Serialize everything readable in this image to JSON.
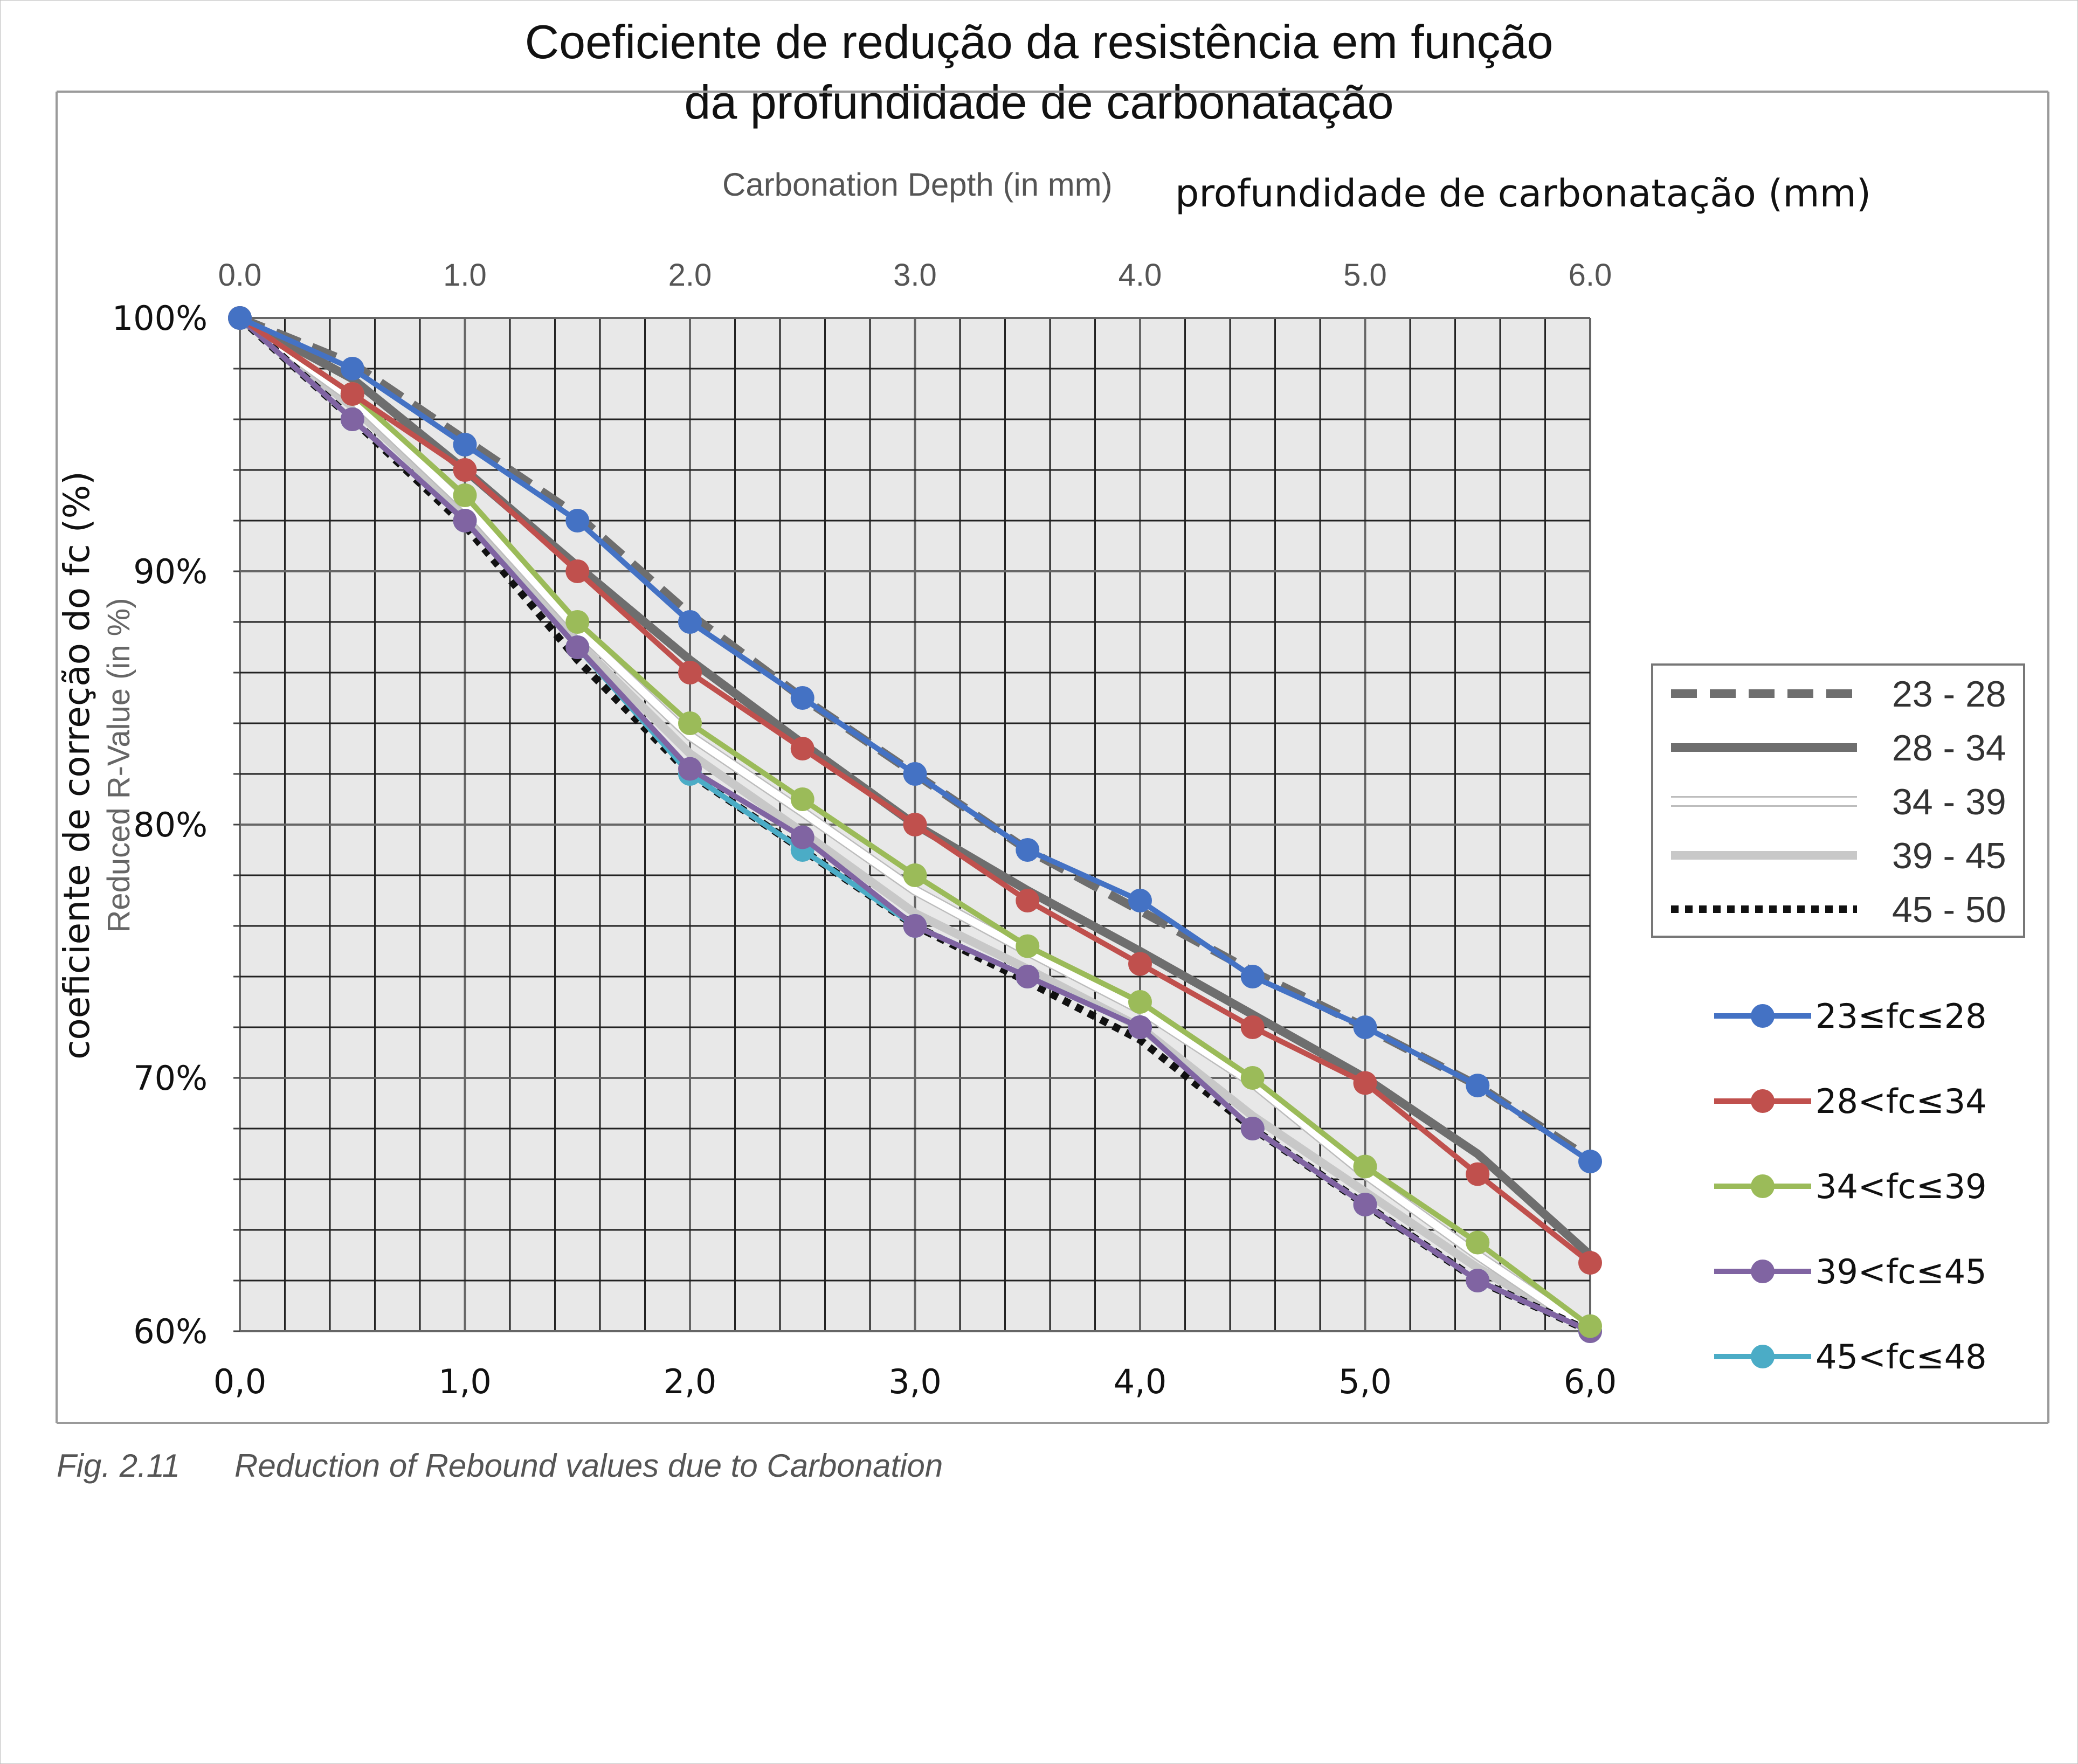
{
  "title_lines": [
    "Coeficiente de redução da resistência em função",
    "da profundidade de carbonatação"
  ],
  "top_axis": {
    "label_en": "Carbonation Depth (in mm)",
    "label_pt": "profundidade de carbonatação (mm)",
    "ticks": [
      "0.0",
      "1.0",
      "2.0",
      "3.0",
      "4.0",
      "5.0",
      "6.0"
    ]
  },
  "bottom_axis": {
    "ticks": [
      "0,0",
      "1,0",
      "2,0",
      "3,0",
      "4,0",
      "5,0",
      "6,0"
    ]
  },
  "y_axis": {
    "label_pt": "coeficiente de correção do fc (%)",
    "label_en": "Reduced R-Value (in %)",
    "ticks": [
      "100%",
      "90%",
      "80%",
      "70%",
      "60%"
    ]
  },
  "caption": {
    "number": "Fig. 2.11",
    "text": "Reduction of Rebound values due to Carbonation"
  },
  "chart_data": {
    "type": "line",
    "xlim": [
      0,
      6
    ],
    "ylim": [
      60,
      100
    ],
    "grid": true,
    "reference_legend": [
      "23 - 28",
      "28 - 34",
      "34 - 39",
      "39 - 45",
      "45 - 50"
    ],
    "reference_curves": [
      {
        "name": "23 - 28",
        "style": "dashed",
        "color": "#6e6e6e",
        "x": [
          0,
          0.5,
          1.0,
          1.5,
          2.0,
          2.5,
          3.0,
          3.5,
          4.0,
          4.5,
          5.0,
          5.5,
          6.0
        ],
        "values": [
          100,
          98.2,
          95.2,
          92.2,
          88.3,
          85.0,
          82.0,
          79.0,
          76.6,
          74.2,
          72.0,
          69.7,
          66.8
        ]
      },
      {
        "name": "28 - 34",
        "style": "solid",
        "color": "#6e6e6e",
        "x": [
          0,
          0.5,
          1.0,
          1.5,
          2.0,
          2.5,
          3.0,
          3.5,
          4.0,
          4.5,
          5.0,
          5.5,
          6.0
        ],
        "values": [
          100,
          97.6,
          94.0,
          90.2,
          86.5,
          83.2,
          80.0,
          77.4,
          75.0,
          72.5,
          70.0,
          67.0,
          63.0
        ]
      },
      {
        "name": "34 - 39",
        "style": "white",
        "color": "#ffffff",
        "x": [
          0,
          0.5,
          1.0,
          1.5,
          2.0,
          2.5,
          3.0,
          3.5,
          4.0,
          4.5,
          5.0,
          5.5,
          6.0
        ],
        "values": [
          100,
          96.8,
          92.6,
          87.7,
          83.5,
          80.5,
          77.4,
          75.0,
          72.7,
          69.8,
          66.2,
          63.0,
          60.0
        ]
      },
      {
        "name": "39 - 45",
        "style": "light",
        "color": "#c8c8c8",
        "x": [
          0,
          0.5,
          1.0,
          1.5,
          2.0,
          2.5,
          3.0,
          3.5,
          4.0,
          4.5,
          5.0,
          5.5,
          6.0
        ],
        "values": [
          100,
          96.5,
          92.3,
          87.2,
          82.8,
          79.7,
          76.5,
          74.3,
          72.0,
          68.5,
          65.5,
          62.5,
          60.0
        ]
      },
      {
        "name": "45 - 50",
        "style": "dotted",
        "color": "#000000",
        "x": [
          0,
          0.5,
          1.0,
          1.5,
          2.0,
          2.5,
          3.0,
          3.5,
          4.0,
          4.5,
          5.0,
          5.5,
          6.0
        ],
        "values": [
          100,
          96.0,
          91.8,
          86.5,
          82.0,
          79.0,
          76.0,
          73.8,
          71.5,
          68.0,
          65.0,
          62.0,
          60.0
        ]
      }
    ],
    "x": [
      0,
      0.5,
      1.0,
      1.5,
      2.0,
      2.5,
      3.0,
      3.5,
      4.0,
      4.5,
      5.0,
      5.5,
      6.0
    ],
    "series": [
      {
        "name": "23≤fc≤28",
        "color": "#4472c4",
        "values": [
          100,
          98,
          95,
          92,
          88,
          85,
          82,
          79,
          77,
          74,
          72,
          69.7,
          66.7
        ]
      },
      {
        "name": "28<fc≤34",
        "color": "#c0504d",
        "values": [
          100,
          97,
          94,
          90,
          86,
          83,
          80,
          77,
          74.5,
          72,
          69.8,
          66.2,
          62.7
        ]
      },
      {
        "name": "34<fc≤39",
        "color": "#9bbb59",
        "values": [
          100,
          97,
          93,
          88,
          84,
          81,
          78,
          75.2,
          73,
          70,
          66.5,
          63.5,
          60.2
        ]
      },
      {
        "name": "39<fc≤45",
        "color": "#8064a2",
        "values": [
          100,
          96,
          92,
          87,
          82.2,
          79.5,
          76,
          74,
          72,
          68,
          65,
          62,
          60
        ]
      },
      {
        "name": "45<fc≤48",
        "color": "#4bacc6",
        "values": [
          100,
          96,
          92,
          87,
          82,
          79,
          76,
          74,
          72,
          68,
          65,
          62,
          60
        ]
      }
    ]
  }
}
